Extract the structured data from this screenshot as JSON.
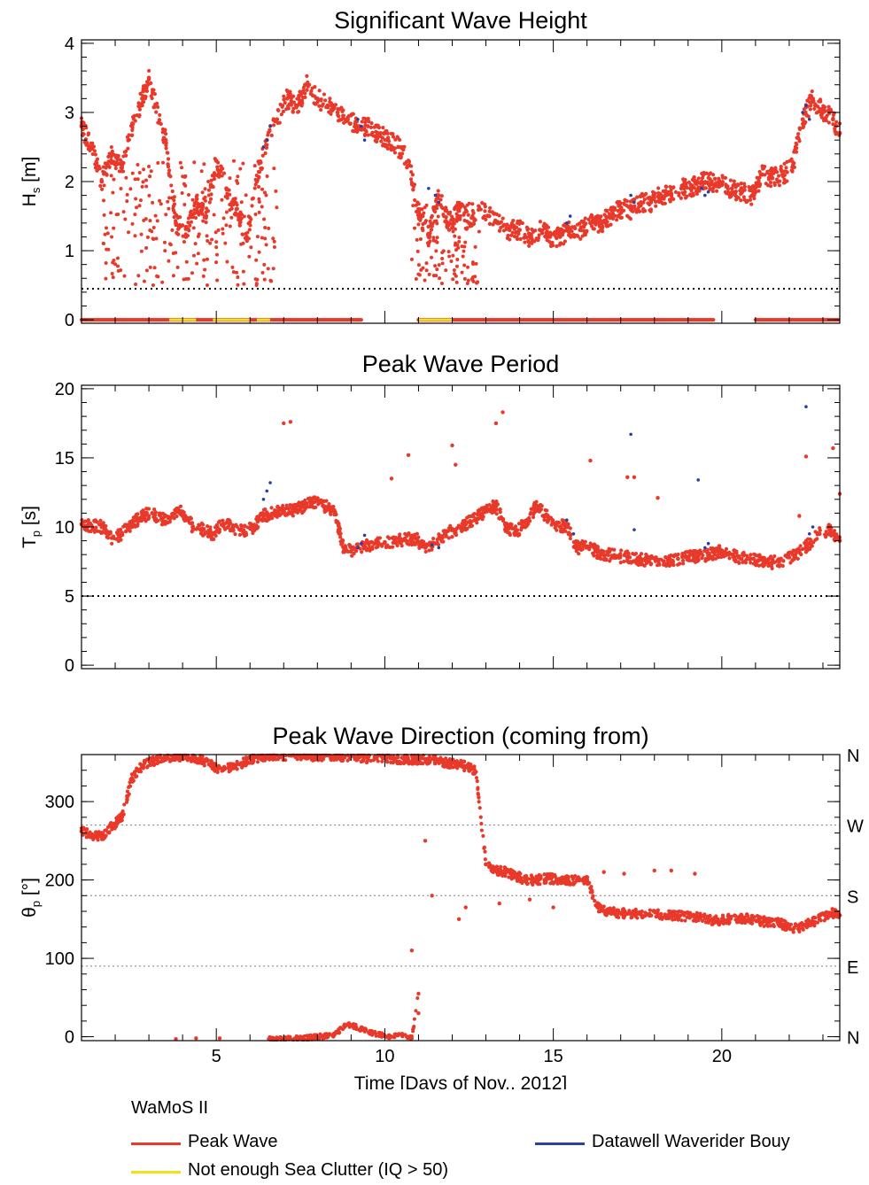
{
  "colors": {
    "peak_wave": "#e8392a",
    "buoy": "#2b3f9e",
    "sea_clutter": "#f2e21c",
    "axes": "#000000",
    "threshold_line": "#000000",
    "ref_line": "#7f7f7f"
  },
  "x_axis": {
    "label": "Time [Days of Nov., 2012]",
    "xlim": [
      1,
      23.5
    ],
    "major_ticks": [
      5,
      10,
      15,
      20
    ],
    "minor_step": 1
  },
  "legend": {
    "heading": "WaMoS II",
    "items": [
      {
        "label": "Peak Wave",
        "color": "#e8392a"
      },
      {
        "label": "Not enough Sea Clutter (IQ >  50)",
        "color": "#f2e21c"
      },
      {
        "label": "Datawell Waverider Bouy",
        "color": "#2b3f9e"
      }
    ]
  },
  "chart_data": [
    {
      "id": "hs",
      "type": "scatter",
      "title": "Significant Wave Height",
      "ylabel_main": "H",
      "ylabel_sub": "s",
      "ylabel_unit": " [m]",
      "ylim": [
        -0.05,
        4.05
      ],
      "y_ticks": [
        0,
        1,
        2,
        3,
        4
      ],
      "threshold": 0.45,
      "flag_value": 0,
      "peak_wave": {
        "x": [
          1.0,
          1.3,
          1.6,
          1.9,
          2.2,
          2.5,
          2.8,
          3.0,
          3.2,
          3.5,
          3.8,
          4.1,
          4.4,
          4.7,
          5.0,
          5.3,
          5.6,
          5.9,
          6.2,
          6.5,
          6.8,
          7.1,
          7.4,
          7.7,
          8.0,
          8.3,
          8.6,
          8.9,
          9.2,
          9.5,
          9.8,
          10.1,
          10.4,
          10.7,
          11.0,
          11.3,
          11.6,
          11.9,
          12.2,
          12.5,
          12.8,
          13.1,
          13.4,
          13.7,
          14.0,
          14.3,
          14.6,
          14.9,
          15.2,
          15.5,
          15.8,
          16.1,
          16.4,
          16.7,
          17.0,
          17.3,
          17.6,
          17.9,
          18.2,
          18.5,
          18.8,
          19.1,
          19.4,
          19.7,
          20.0,
          20.3,
          20.6,
          20.9,
          21.2,
          21.5,
          21.8,
          22.1,
          22.4,
          22.7,
          23.0,
          23.3,
          23.5
        ],
        "y": [
          2.8,
          2.5,
          2.0,
          2.4,
          2.2,
          2.8,
          3.2,
          3.5,
          3.1,
          2.6,
          1.4,
          1.2,
          1.7,
          1.5,
          2.3,
          1.9,
          1.6,
          1.2,
          2.0,
          2.6,
          2.9,
          3.2,
          3.1,
          3.4,
          3.2,
          3.1,
          3.0,
          2.9,
          2.8,
          2.8,
          2.7,
          2.6,
          2.5,
          2.3,
          1.6,
          1.2,
          1.8,
          1.4,
          1.6,
          1.4,
          1.6,
          1.5,
          1.4,
          1.3,
          1.3,
          1.2,
          1.3,
          1.2,
          1.2,
          1.3,
          1.3,
          1.4,
          1.4,
          1.5,
          1.6,
          1.6,
          1.7,
          1.7,
          1.8,
          1.8,
          1.9,
          1.9,
          2.0,
          2.0,
          1.95,
          1.9,
          1.85,
          1.8,
          2.1,
          2.05,
          2.1,
          2.2,
          2.9,
          3.2,
          3.0,
          2.9,
          2.7
        ]
      },
      "buoy": {
        "x": [
          6.4,
          6.5,
          6.6,
          9.2,
          9.3,
          9.4,
          11.3,
          11.5,
          11.6,
          15.4,
          15.5,
          17.3,
          17.4,
          19.4,
          19.5,
          19.6,
          22.4,
          22.5,
          22.6
        ],
        "y": [
          2.5,
          2.6,
          2.8,
          2.9,
          2.8,
          2.6,
          1.9,
          1.8,
          1.7,
          1.4,
          1.5,
          1.8,
          1.7,
          1.9,
          1.8,
          1.85,
          3.0,
          3.1,
          2.9
        ]
      },
      "flagged_ranges": [
        [
          3.6,
          4.4
        ],
        [
          4.9,
          6.0
        ],
        [
          6.2,
          6.6
        ],
        [
          11.0,
          12.0
        ]
      ],
      "flag_coverage": [
        [
          1.0,
          9.3
        ],
        [
          11.0,
          19.8
        ],
        [
          21.0,
          23.5
        ]
      ]
    },
    {
      "id": "tp",
      "type": "scatter",
      "title": "Peak Wave Period",
      "ylabel_main": "T",
      "ylabel_sub": "p",
      "ylabel_unit": " [s]",
      "ylim": [
        -0.25,
        20.25
      ],
      "y_ticks": [
        0,
        5,
        10,
        15,
        20
      ],
      "threshold": 5,
      "peak_wave": {
        "x": [
          1.0,
          1.3,
          1.6,
          1.9,
          2.2,
          2.5,
          2.8,
          3.1,
          3.4,
          3.7,
          4.0,
          4.3,
          4.6,
          4.9,
          5.2,
          5.5,
          5.8,
          6.1,
          6.4,
          6.7,
          7.0,
          7.3,
          7.6,
          7.9,
          8.2,
          8.5,
          8.8,
          9.1,
          9.4,
          9.7,
          10.0,
          10.3,
          10.6,
          10.9,
          11.2,
          11.5,
          11.8,
          12.1,
          12.4,
          12.7,
          13.0,
          13.3,
          13.6,
          13.9,
          14.2,
          14.5,
          14.8,
          15.1,
          15.4,
          15.7,
          16.0,
          16.3,
          16.6,
          16.9,
          17.2,
          17.5,
          17.8,
          18.1,
          18.4,
          18.7,
          19.0,
          19.3,
          19.6,
          19.9,
          20.2,
          20.5,
          20.8,
          21.1,
          21.4,
          21.7,
          22.0,
          22.3,
          22.6,
          22.9,
          23.2,
          23.5
        ],
        "y": [
          10.2,
          10.1,
          10.0,
          9.2,
          9.5,
          10.2,
          10.8,
          11.0,
          10.5,
          10.8,
          11.1,
          10.0,
          9.8,
          9.5,
          10.2,
          10.0,
          9.6,
          10.0,
          10.8,
          11.0,
          11.1,
          11.2,
          11.5,
          11.8,
          11.5,
          11.2,
          8.2,
          8.4,
          8.6,
          8.8,
          8.9,
          9.0,
          9.1,
          9.2,
          8.5,
          8.8,
          9.5,
          9.8,
          10.2,
          10.6,
          11.2,
          11.5,
          10.0,
          9.6,
          10.4,
          11.5,
          10.8,
          10.2,
          10.0,
          8.5,
          8.6,
          8.2,
          8.0,
          7.9,
          7.8,
          7.7,
          7.6,
          7.6,
          7.6,
          7.7,
          7.8,
          7.9,
          8.0,
          8.2,
          8.0,
          7.8,
          7.7,
          7.6,
          7.4,
          7.5,
          7.8,
          8.2,
          8.8,
          9.5,
          9.8,
          9.0
        ]
      },
      "outliers": {
        "x": [
          7.0,
          7.2,
          10.2,
          10.7,
          12.0,
          12.1,
          13.3,
          13.5,
          16.1,
          17.2,
          17.4,
          18.1,
          22.3,
          22.5,
          23.3,
          23.5
        ],
        "y": [
          17.5,
          17.6,
          13.5,
          15.2,
          15.9,
          14.5,
          17.5,
          18.3,
          14.8,
          13.6,
          13.6,
          12.1,
          10.8,
          15.1,
          15.7,
          12.4
        ]
      },
      "buoy": {
        "x": [
          6.4,
          6.5,
          6.6,
          9.2,
          9.3,
          9.4,
          11.4,
          11.6,
          15.4,
          15.6,
          17.3,
          17.4,
          19.3,
          19.5,
          19.6,
          22.5,
          22.6,
          22.7
        ],
        "y": [
          12.0,
          12.6,
          13.2,
          8.5,
          8.8,
          9.4,
          8.7,
          8.5,
          10.5,
          9.5,
          16.7,
          9.8,
          13.4,
          8.5,
          8.8,
          18.7,
          9.5,
          10.0
        ]
      }
    },
    {
      "id": "dir",
      "type": "scatter",
      "title": "Peak Wave Direction (coming from)",
      "ylabel_main": "θ",
      "ylabel_sub": "p",
      "ylabel_unit": " [°]",
      "ylim": [
        -5,
        360
      ],
      "y_ticks": [
        0,
        100,
        200,
        300
      ],
      "ref_lines": [
        90,
        180,
        270
      ],
      "compass": [
        {
          "label": "N",
          "value": 360
        },
        {
          "label": "W",
          "value": 270
        },
        {
          "label": "S",
          "value": 180
        },
        {
          "label": "E",
          "value": 90
        },
        {
          "label": "N",
          "value": 0
        }
      ],
      "peak_wave": {
        "x": [
          1.0,
          1.3,
          1.6,
          1.9,
          2.2,
          2.5,
          2.8,
          3.1,
          3.4,
          3.7,
          4.0,
          4.3,
          4.6,
          4.9,
          5.2,
          5.5,
          5.8,
          6.1,
          6.4,
          6.7,
          7.0,
          7.3,
          7.6,
          7.9,
          8.2,
          8.5,
          8.8,
          9.1,
          9.4,
          9.7,
          10.0,
          10.3,
          10.6,
          10.9,
          11.2,
          11.5,
          11.8,
          12.1,
          12.4,
          12.7,
          13.0,
          13.3,
          13.6,
          13.9,
          14.2,
          14.5,
          14.8,
          15.1,
          15.4,
          15.7,
          16.0,
          16.3,
          16.6,
          16.9,
          17.2,
          17.5,
          17.8,
          18.1,
          18.4,
          18.7,
          19.0,
          19.3,
          19.6,
          19.9,
          20.2,
          20.5,
          20.8,
          21.1,
          21.4,
          21.7,
          22.0,
          22.3,
          22.6,
          22.9,
          23.2,
          23.5
        ],
        "y": [
          262,
          258,
          255,
          268,
          280,
          330,
          345,
          352,
          355,
          358,
          358,
          356,
          352,
          345,
          340,
          345,
          350,
          355,
          358,
          359,
          359,
          359,
          359,
          358,
          358,
          357,
          358,
          358,
          356,
          355,
          356,
          355,
          354,
          354,
          354,
          352,
          350,
          348,
          345,
          338,
          220,
          212,
          210,
          205,
          200,
          200,
          202,
          201,
          200,
          200,
          200,
          166,
          160,
          158,
          157,
          157,
          156,
          156,
          155,
          155,
          153,
          152,
          150,
          148,
          150,
          152,
          150,
          148,
          146,
          145,
          140,
          138,
          145,
          150,
          158,
          155
        ]
      },
      "low_cluster": {
        "x": [
          3.8,
          4.4,
          5.1,
          6.6,
          7.0,
          7.5,
          8.0,
          8.5,
          8.8,
          9.0,
          9.3,
          9.6,
          9.9,
          10.2,
          10.5,
          10.8,
          11.0
        ],
        "y": [
          -3,
          -2,
          -2,
          -3,
          -3,
          -2,
          0,
          2,
          14,
          15,
          10,
          5,
          2,
          0,
          2,
          -2,
          55
        ]
      },
      "scattered": {
        "x": [
          10.8,
          11.0,
          11.2,
          11.4,
          12.2,
          12.4,
          13.4,
          14.3,
          15.0,
          16.5,
          17.1,
          18.0,
          18.5,
          19.2
        ],
        "y": [
          110,
          30,
          250,
          180,
          150,
          165,
          170,
          175,
          165,
          210,
          208,
          212,
          212,
          208
        ]
      }
    }
  ]
}
